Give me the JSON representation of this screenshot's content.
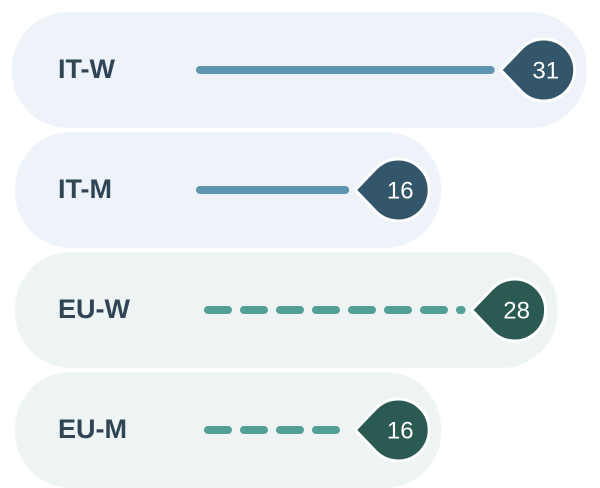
{
  "chart_data": {
    "type": "lollipop",
    "categories": [
      "IT-W",
      "IT-M",
      "EU-W",
      "EU-M"
    ],
    "values": [
      31,
      16,
      28,
      16
    ],
    "line_colors": [
      "#5e95b0",
      "#5e95b0",
      "#54a096",
      "#54a096"
    ],
    "badge_colors": [
      "#34566b",
      "#34566b",
      "#2b5a52",
      "#2b5a52"
    ],
    "line_styles": [
      "solid",
      "solid",
      "dashed",
      "dashed"
    ],
    "row_colors": [
      "#eef3f9",
      "#eef3f9",
      "#edf4f3",
      "#edf4f3"
    ]
  }
}
